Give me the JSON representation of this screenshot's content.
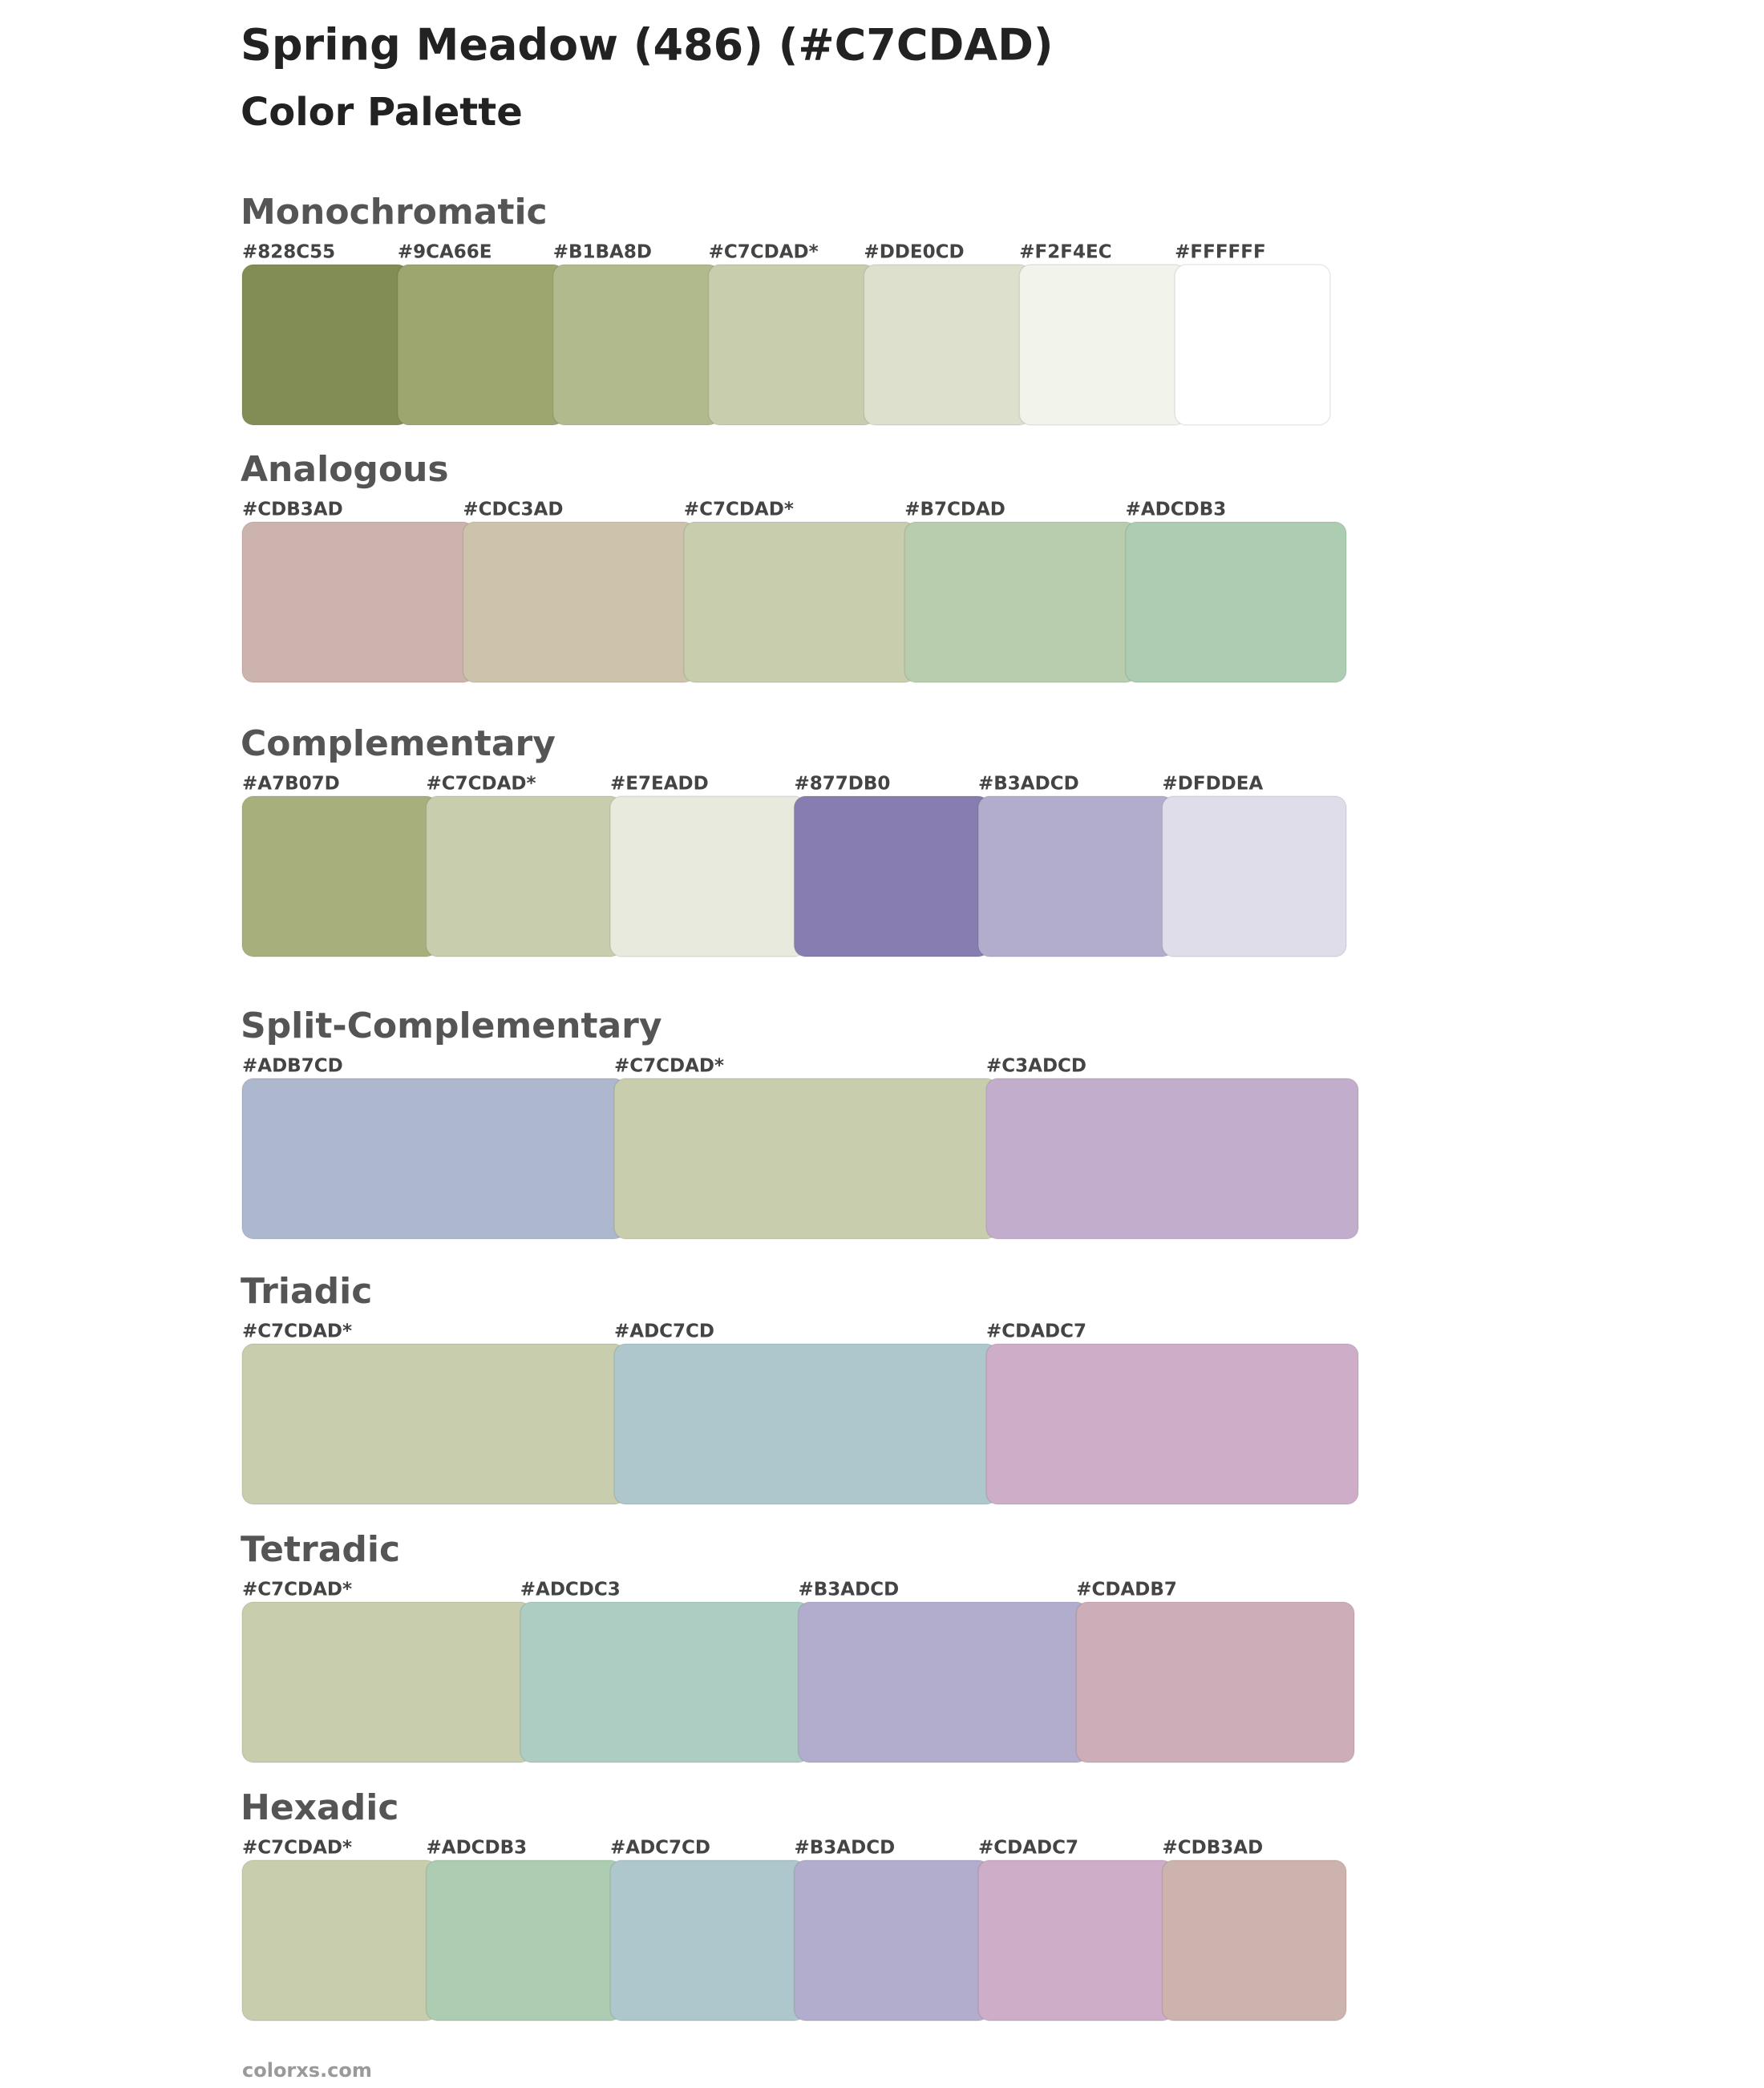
{
  "header": {
    "title": "Spring Meadow (486) (#C7CDAD)",
    "subtitle": "Color Palette"
  },
  "sections": [
    {
      "name": "Monochromatic",
      "swatches": [
        {
          "label": "#828C55",
          "color": "#828C55"
        },
        {
          "label": "#9CA66E",
          "color": "#9CA66E"
        },
        {
          "label": "#B1BA8D",
          "color": "#B1BA8D"
        },
        {
          "label": "#C7CDAD*",
          "color": "#C7CDAD"
        },
        {
          "label": "#DDE0CD",
          "color": "#DDE0CD"
        },
        {
          "label": "#F2F4EC",
          "color": "#F2F4EC"
        },
        {
          "label": "#FFFFFF",
          "color": "#FFFFFF"
        }
      ]
    },
    {
      "name": "Analogous",
      "swatches": [
        {
          "label": "#CDB3AD",
          "color": "#CDB3AD"
        },
        {
          "label": "#CDC3AD",
          "color": "#CDC3AD"
        },
        {
          "label": "#C7CDAD*",
          "color": "#C7CDAD"
        },
        {
          "label": "#B7CDAD",
          "color": "#B7CDAD"
        },
        {
          "label": "#ADCDB3",
          "color": "#ADCDB3"
        }
      ]
    },
    {
      "name": "Complementary",
      "swatches": [
        {
          "label": "#A7B07D",
          "color": "#A7B07D"
        },
        {
          "label": "#C7CDAD*",
          "color": "#C7CDAD"
        },
        {
          "label": "#E7EADD",
          "color": "#E7EADD"
        },
        {
          "label": "#877DB0",
          "color": "#877DB0"
        },
        {
          "label": "#B3ADCD",
          "color": "#B3ADCD"
        },
        {
          "label": "#DFDDEA",
          "color": "#DFDDEA"
        }
      ]
    },
    {
      "name": "Split-Complementary",
      "swatches": [
        {
          "label": "#ADB7CD",
          "color": "#ADB7CD"
        },
        {
          "label": "#C7CDAD*",
          "color": "#C7CDAD"
        },
        {
          "label": "#C3ADCD",
          "color": "#C3ADCD"
        }
      ]
    },
    {
      "name": "Triadic",
      "swatches": [
        {
          "label": "#C7CDAD*",
          "color": "#C7CDAD"
        },
        {
          "label": "#ADC7CD",
          "color": "#ADC7CD"
        },
        {
          "label": "#CDADC7",
          "color": "#CDADC7"
        }
      ]
    },
    {
      "name": "Tetradic",
      "swatches": [
        {
          "label": "#C7CDAD*",
          "color": "#C7CDAD"
        },
        {
          "label": "#ADCDC3",
          "color": "#ADCDC3"
        },
        {
          "label": "#B3ADCD",
          "color": "#B3ADCD"
        },
        {
          "label": "#CDADB7",
          "color": "#CDADB7"
        }
      ]
    },
    {
      "name": "Hexadic",
      "swatches": [
        {
          "label": "#C7CDAD*",
          "color": "#C7CDAD"
        },
        {
          "label": "#ADCDB3",
          "color": "#ADCDB3"
        },
        {
          "label": "#ADC7CD",
          "color": "#ADC7CD"
        },
        {
          "label": "#B3ADCD",
          "color": "#B3ADCD"
        },
        {
          "label": "#CDADC7",
          "color": "#CDADC7"
        },
        {
          "label": "#CDB3AD",
          "color": "#CDB3AD"
        }
      ]
    }
  ],
  "footer": "colorxs.com"
}
